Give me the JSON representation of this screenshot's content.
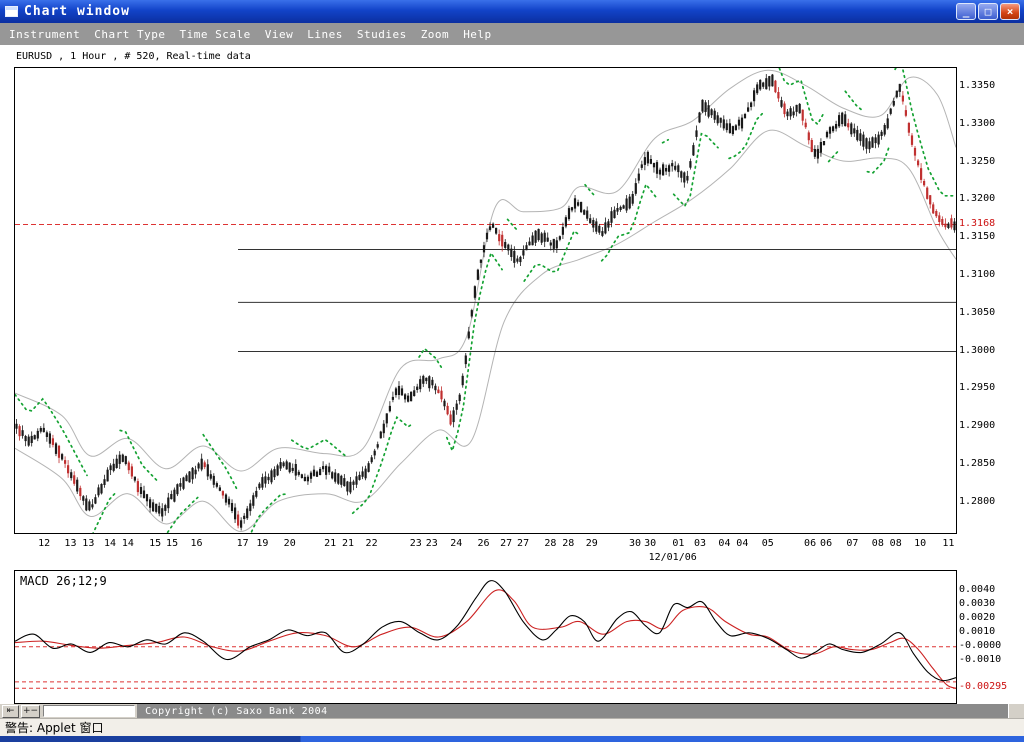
{
  "window": {
    "title": "Chart window",
    "controls": {
      "minimize": "_",
      "maximize": "□",
      "close": "×"
    }
  },
  "menu": {
    "items": [
      "Instrument",
      "Chart Type",
      "Time Scale",
      "View",
      "Lines",
      "Studies",
      "Zoom",
      "Help"
    ]
  },
  "chart_header": "EURUSD , 1 Hour , # 520, Real-time data",
  "toolbar": {
    "pan_icon": "⇤",
    "zoom_icon": "+−",
    "copyright": "Copyright (c) Saxo Bank 2004"
  },
  "statusbar": {
    "text": "警告: Applet 窗口"
  },
  "colors": {
    "up": "#1a1a1a",
    "down": "#c03030",
    "sar": "#14a232",
    "band": "#b4b4b4",
    "ref": "#dd3333",
    "macd": "#000000",
    "signal": "#cc2222",
    "support": "#333333"
  },
  "chart_data": [
    {
      "type": "candlestick",
      "instrument": "EURUSD",
      "timeframe": "1 Hour",
      "bars": 520,
      "data_mode": "Real-time data",
      "ylim": [
        1.276,
        1.3375
      ],
      "y_labels": [
        1.335,
        1.33,
        1.325,
        1.32,
        1.315,
        1.31,
        1.305,
        1.3,
        1.295,
        1.29,
        1.285,
        1.28
      ],
      "current_price": 1.3168,
      "horizontal_lines": [
        {
          "price": 1.3135,
          "from_t": 0.237
        },
        {
          "price": 1.3065,
          "from_t": 0.237
        },
        {
          "price": 1.3,
          "from_t": 0.237
        }
      ],
      "x_labels": [
        {
          "t": 0.032,
          "label": "12"
        },
        {
          "t": 0.06,
          "label": "13"
        },
        {
          "t": 0.079,
          "label": "13"
        },
        {
          "t": 0.102,
          "label": "14"
        },
        {
          "t": 0.121,
          "label": "14"
        },
        {
          "t": 0.15,
          "label": "15"
        },
        {
          "t": 0.168,
          "label": "15"
        },
        {
          "t": 0.194,
          "label": "16"
        },
        {
          "t": 0.243,
          "label": "17"
        },
        {
          "t": 0.264,
          "label": "19"
        },
        {
          "t": 0.293,
          "label": "20"
        },
        {
          "t": 0.336,
          "label": "21"
        },
        {
          "t": 0.355,
          "label": "21"
        },
        {
          "t": 0.38,
          "label": "22"
        },
        {
          "t": 0.427,
          "label": "23"
        },
        {
          "t": 0.444,
          "label": "23"
        },
        {
          "t": 0.47,
          "label": "24"
        },
        {
          "t": 0.499,
          "label": "26"
        },
        {
          "t": 0.523,
          "label": "27"
        },
        {
          "t": 0.541,
          "label": "27"
        },
        {
          "t": 0.57,
          "label": "28"
        },
        {
          "t": 0.589,
          "label": "28"
        },
        {
          "t": 0.614,
          "label": "29"
        },
        {
          "t": 0.66,
          "label": "30"
        },
        {
          "t": 0.676,
          "label": "30"
        },
        {
          "t": 0.706,
          "label": "01"
        },
        {
          "t": 0.729,
          "label": "03"
        },
        {
          "t": 0.755,
          "label": "04"
        },
        {
          "t": 0.774,
          "label": "04"
        },
        {
          "t": 0.801,
          "label": "05"
        },
        {
          "t": 0.846,
          "label": "06"
        },
        {
          "t": 0.863,
          "label": "06"
        },
        {
          "t": 0.891,
          "label": "07"
        },
        {
          "t": 0.918,
          "label": "08"
        },
        {
          "t": 0.937,
          "label": "08"
        },
        {
          "t": 0.963,
          "label": "10"
        },
        {
          "t": 0.993,
          "label": "11"
        }
      ],
      "date_label": "12/01/06",
      "date_x": 0.7,
      "price_path": [
        [
          0,
          1.2905
        ],
        [
          0.015,
          1.288
        ],
        [
          0.03,
          1.29
        ],
        [
          0.05,
          1.286
        ],
        [
          0.08,
          1.279
        ],
        [
          0.1,
          1.2842
        ],
        [
          0.115,
          1.2862
        ],
        [
          0.135,
          1.2812
        ],
        [
          0.155,
          1.2786
        ],
        [
          0.175,
          1.2822
        ],
        [
          0.2,
          1.2852
        ],
        [
          0.225,
          1.2806
        ],
        [
          0.24,
          1.277
        ],
        [
          0.26,
          1.2822
        ],
        [
          0.285,
          1.2852
        ],
        [
          0.31,
          1.2832
        ],
        [
          0.33,
          1.2846
        ],
        [
          0.355,
          1.282
        ],
        [
          0.375,
          1.2842
        ],
        [
          0.39,
          1.2892
        ],
        [
          0.405,
          1.2952
        ],
        [
          0.42,
          1.2936
        ],
        [
          0.435,
          1.2966
        ],
        [
          0.45,
          1.295
        ],
        [
          0.465,
          1.2906
        ],
        [
          0.475,
          1.2952
        ],
        [
          0.49,
          1.3092
        ],
        [
          0.505,
          1.317
        ],
        [
          0.52,
          1.3142
        ],
        [
          0.535,
          1.312
        ],
        [
          0.555,
          1.3156
        ],
        [
          0.575,
          1.314
        ],
        [
          0.595,
          1.32
        ],
        [
          0.61,
          1.3176
        ],
        [
          0.625,
          1.3156
        ],
        [
          0.64,
          1.319
        ],
        [
          0.655,
          1.3196
        ],
        [
          0.67,
          1.326
        ],
        [
          0.685,
          1.3236
        ],
        [
          0.7,
          1.3246
        ],
        [
          0.715,
          1.3226
        ],
        [
          0.73,
          1.333
        ],
        [
          0.745,
          1.331
        ],
        [
          0.76,
          1.3292
        ],
        [
          0.775,
          1.3306
        ],
        [
          0.79,
          1.335
        ],
        [
          0.805,
          1.336
        ],
        [
          0.82,
          1.3312
        ],
        [
          0.835,
          1.3322
        ],
        [
          0.85,
          1.3256
        ],
        [
          0.865,
          1.329
        ],
        [
          0.88,
          1.331
        ],
        [
          0.895,
          1.3286
        ],
        [
          0.91,
          1.3272
        ],
        [
          0.925,
          1.3292
        ],
        [
          0.94,
          1.3355
        ],
        [
          0.955,
          1.327
        ],
        [
          0.97,
          1.3205
        ],
        [
          0.985,
          1.3168
        ],
        [
          1,
          1.3168
        ]
      ],
      "upper_band": [
        [
          0,
          1.2945
        ],
        [
          0.05,
          1.2915
        ],
        [
          0.08,
          1.2862
        ],
        [
          0.12,
          1.2885
        ],
        [
          0.16,
          1.2845
        ],
        [
          0.2,
          1.2875
        ],
        [
          0.24,
          1.2842
        ],
        [
          0.28,
          1.2872
        ],
        [
          0.33,
          1.2865
        ],
        [
          0.37,
          1.2872
        ],
        [
          0.41,
          1.2978
        ],
        [
          0.45,
          1.299
        ],
        [
          0.48,
          1.302
        ],
        [
          0.51,
          1.319
        ],
        [
          0.54,
          1.3185
        ],
        [
          0.58,
          1.319
        ],
        [
          0.6,
          1.3218
        ],
        [
          0.64,
          1.3212
        ],
        [
          0.68,
          1.3282
        ],
        [
          0.72,
          1.3305
        ],
        [
          0.76,
          1.3348
        ],
        [
          0.8,
          1.3372
        ],
        [
          0.84,
          1.3352
        ],
        [
          0.88,
          1.3322
        ],
        [
          0.92,
          1.3312
        ],
        [
          0.95,
          1.3362
        ],
        [
          0.98,
          1.334
        ],
        [
          1,
          1.327
        ]
      ],
      "lower_band": [
        [
          0,
          1.2872
        ],
        [
          0.05,
          1.2832
        ],
        [
          0.08,
          1.2782
        ],
        [
          0.12,
          1.2812
        ],
        [
          0.16,
          1.2772
        ],
        [
          0.2,
          1.2802
        ],
        [
          0.24,
          1.2762
        ],
        [
          0.28,
          1.2802
        ],
        [
          0.33,
          1.2812
        ],
        [
          0.37,
          1.2802
        ],
        [
          0.41,
          1.2852
        ],
        [
          0.45,
          1.2896
        ],
        [
          0.485,
          1.2882
        ],
        [
          0.52,
          1.304
        ],
        [
          0.56,
          1.3102
        ],
        [
          0.6,
          1.3122
        ],
        [
          0.64,
          1.3142
        ],
        [
          0.68,
          1.3172
        ],
        [
          0.72,
          1.3202
        ],
        [
          0.76,
          1.3242
        ],
        [
          0.8,
          1.3292
        ],
        [
          0.84,
          1.3272
        ],
        [
          0.88,
          1.3252
        ],
        [
          0.92,
          1.3256
        ],
        [
          0.95,
          1.3242
        ],
        [
          0.98,
          1.3162
        ],
        [
          1,
          1.3122
        ]
      ]
    },
    {
      "type": "line",
      "title": "MACD 26;12;9",
      "ylim": [
        -0.004,
        0.0054
      ],
      "y_labels": [
        {
          "label": "0.0040",
          "value": 0.004
        },
        {
          "label": "0.0030",
          "value": 0.003
        },
        {
          "label": "0.0020",
          "value": 0.002
        },
        {
          "label": "0.0010",
          "value": 0.001
        },
        {
          "label": "-0.0000",
          "value": 0
        },
        {
          "label": "-0.0010",
          "value": -0.001
        }
      ],
      "current_label": "-0.00295",
      "current_value": -0.00295,
      "dashed_levels": [
        0,
        -0.0025,
        -0.00295
      ],
      "macd": [
        [
          0,
          0.0004
        ],
        [
          0.02,
          0.0009
        ],
        [
          0.04,
          -0.0001
        ],
        [
          0.06,
          0.0002
        ],
        [
          0.08,
          -0.0004
        ],
        [
          0.1,
          0.0003
        ],
        [
          0.12,
          0
        ],
        [
          0.14,
          0.0005
        ],
        [
          0.16,
          0.0002
        ],
        [
          0.18,
          0.001
        ],
        [
          0.2,
          0.0004
        ],
        [
          0.225,
          -0.0009
        ],
        [
          0.25,
          0
        ],
        [
          0.27,
          0.0005
        ],
        [
          0.29,
          0.0012
        ],
        [
          0.31,
          0.0008
        ],
        [
          0.33,
          0.001
        ],
        [
          0.35,
          -0.0004
        ],
        [
          0.37,
          0.0002
        ],
        [
          0.39,
          0.0014
        ],
        [
          0.41,
          0.0018
        ],
        [
          0.43,
          0.001
        ],
        [
          0.45,
          0.0005
        ],
        [
          0.47,
          0.0015
        ],
        [
          0.49,
          0.0035
        ],
        [
          0.505,
          0.0047
        ],
        [
          0.52,
          0.004
        ],
        [
          0.54,
          0.0018
        ],
        [
          0.56,
          0.0005
        ],
        [
          0.575,
          0.0012
        ],
        [
          0.59,
          0.0022
        ],
        [
          0.605,
          0.0018
        ],
        [
          0.62,
          0.0004
        ],
        [
          0.64,
          0.002
        ],
        [
          0.655,
          0.0025
        ],
        [
          0.67,
          0.0015
        ],
        [
          0.685,
          0.001
        ],
        [
          0.7,
          0.003
        ],
        [
          0.715,
          0.0028
        ],
        [
          0.73,
          0.0032
        ],
        [
          0.745,
          0.0018
        ],
        [
          0.76,
          0.0008
        ],
        [
          0.78,
          0.001
        ],
        [
          0.8,
          0.0006
        ],
        [
          0.82,
          -0.0002
        ],
        [
          0.835,
          -0.0008
        ],
        [
          0.85,
          -0.0004
        ],
        [
          0.865,
          0.0002
        ],
        [
          0.88,
          -0.0002
        ],
        [
          0.9,
          -0.0004
        ],
        [
          0.92,
          0.0002
        ],
        [
          0.94,
          0.001
        ],
        [
          0.955,
          -0.0005
        ],
        [
          0.97,
          -0.0018
        ],
        [
          0.985,
          -0.0024
        ],
        [
          1,
          -0.0022
        ]
      ],
      "signal": [
        [
          0,
          0.0003
        ],
        [
          0.03,
          0.0004
        ],
        [
          0.06,
          0.0001
        ],
        [
          0.09,
          -0.0001
        ],
        [
          0.12,
          0.0001
        ],
        [
          0.15,
          0.0003
        ],
        [
          0.18,
          0.0007
        ],
        [
          0.21,
          0
        ],
        [
          0.24,
          -0.0003
        ],
        [
          0.27,
          0.0004
        ],
        [
          0.3,
          0.001
        ],
        [
          0.33,
          0.0008
        ],
        [
          0.36,
          0
        ],
        [
          0.39,
          0.0009
        ],
        [
          0.42,
          0.0014
        ],
        [
          0.45,
          0.0007
        ],
        [
          0.48,
          0.0018
        ],
        [
          0.51,
          0.004
        ],
        [
          0.53,
          0.0033
        ],
        [
          0.55,
          0.0014
        ],
        [
          0.58,
          0.0014
        ],
        [
          0.6,
          0.0018
        ],
        [
          0.625,
          0.0009
        ],
        [
          0.65,
          0.0018
        ],
        [
          0.67,
          0.0018
        ],
        [
          0.69,
          0.0013
        ],
        [
          0.71,
          0.0026
        ],
        [
          0.735,
          0.0028
        ],
        [
          0.755,
          0.0018
        ],
        [
          0.78,
          0.0009
        ],
        [
          0.8,
          0.0007
        ],
        [
          0.825,
          -0.0003
        ],
        [
          0.85,
          -0.0005
        ],
        [
          0.87,
          0
        ],
        [
          0.89,
          -0.0002
        ],
        [
          0.91,
          -0.0002
        ],
        [
          0.93,
          0.0003
        ],
        [
          0.945,
          0.0006
        ],
        [
          0.96,
          -0.0002
        ],
        [
          0.975,
          -0.0015
        ],
        [
          0.99,
          -0.0027
        ],
        [
          1,
          -0.00295
        ]
      ]
    }
  ]
}
